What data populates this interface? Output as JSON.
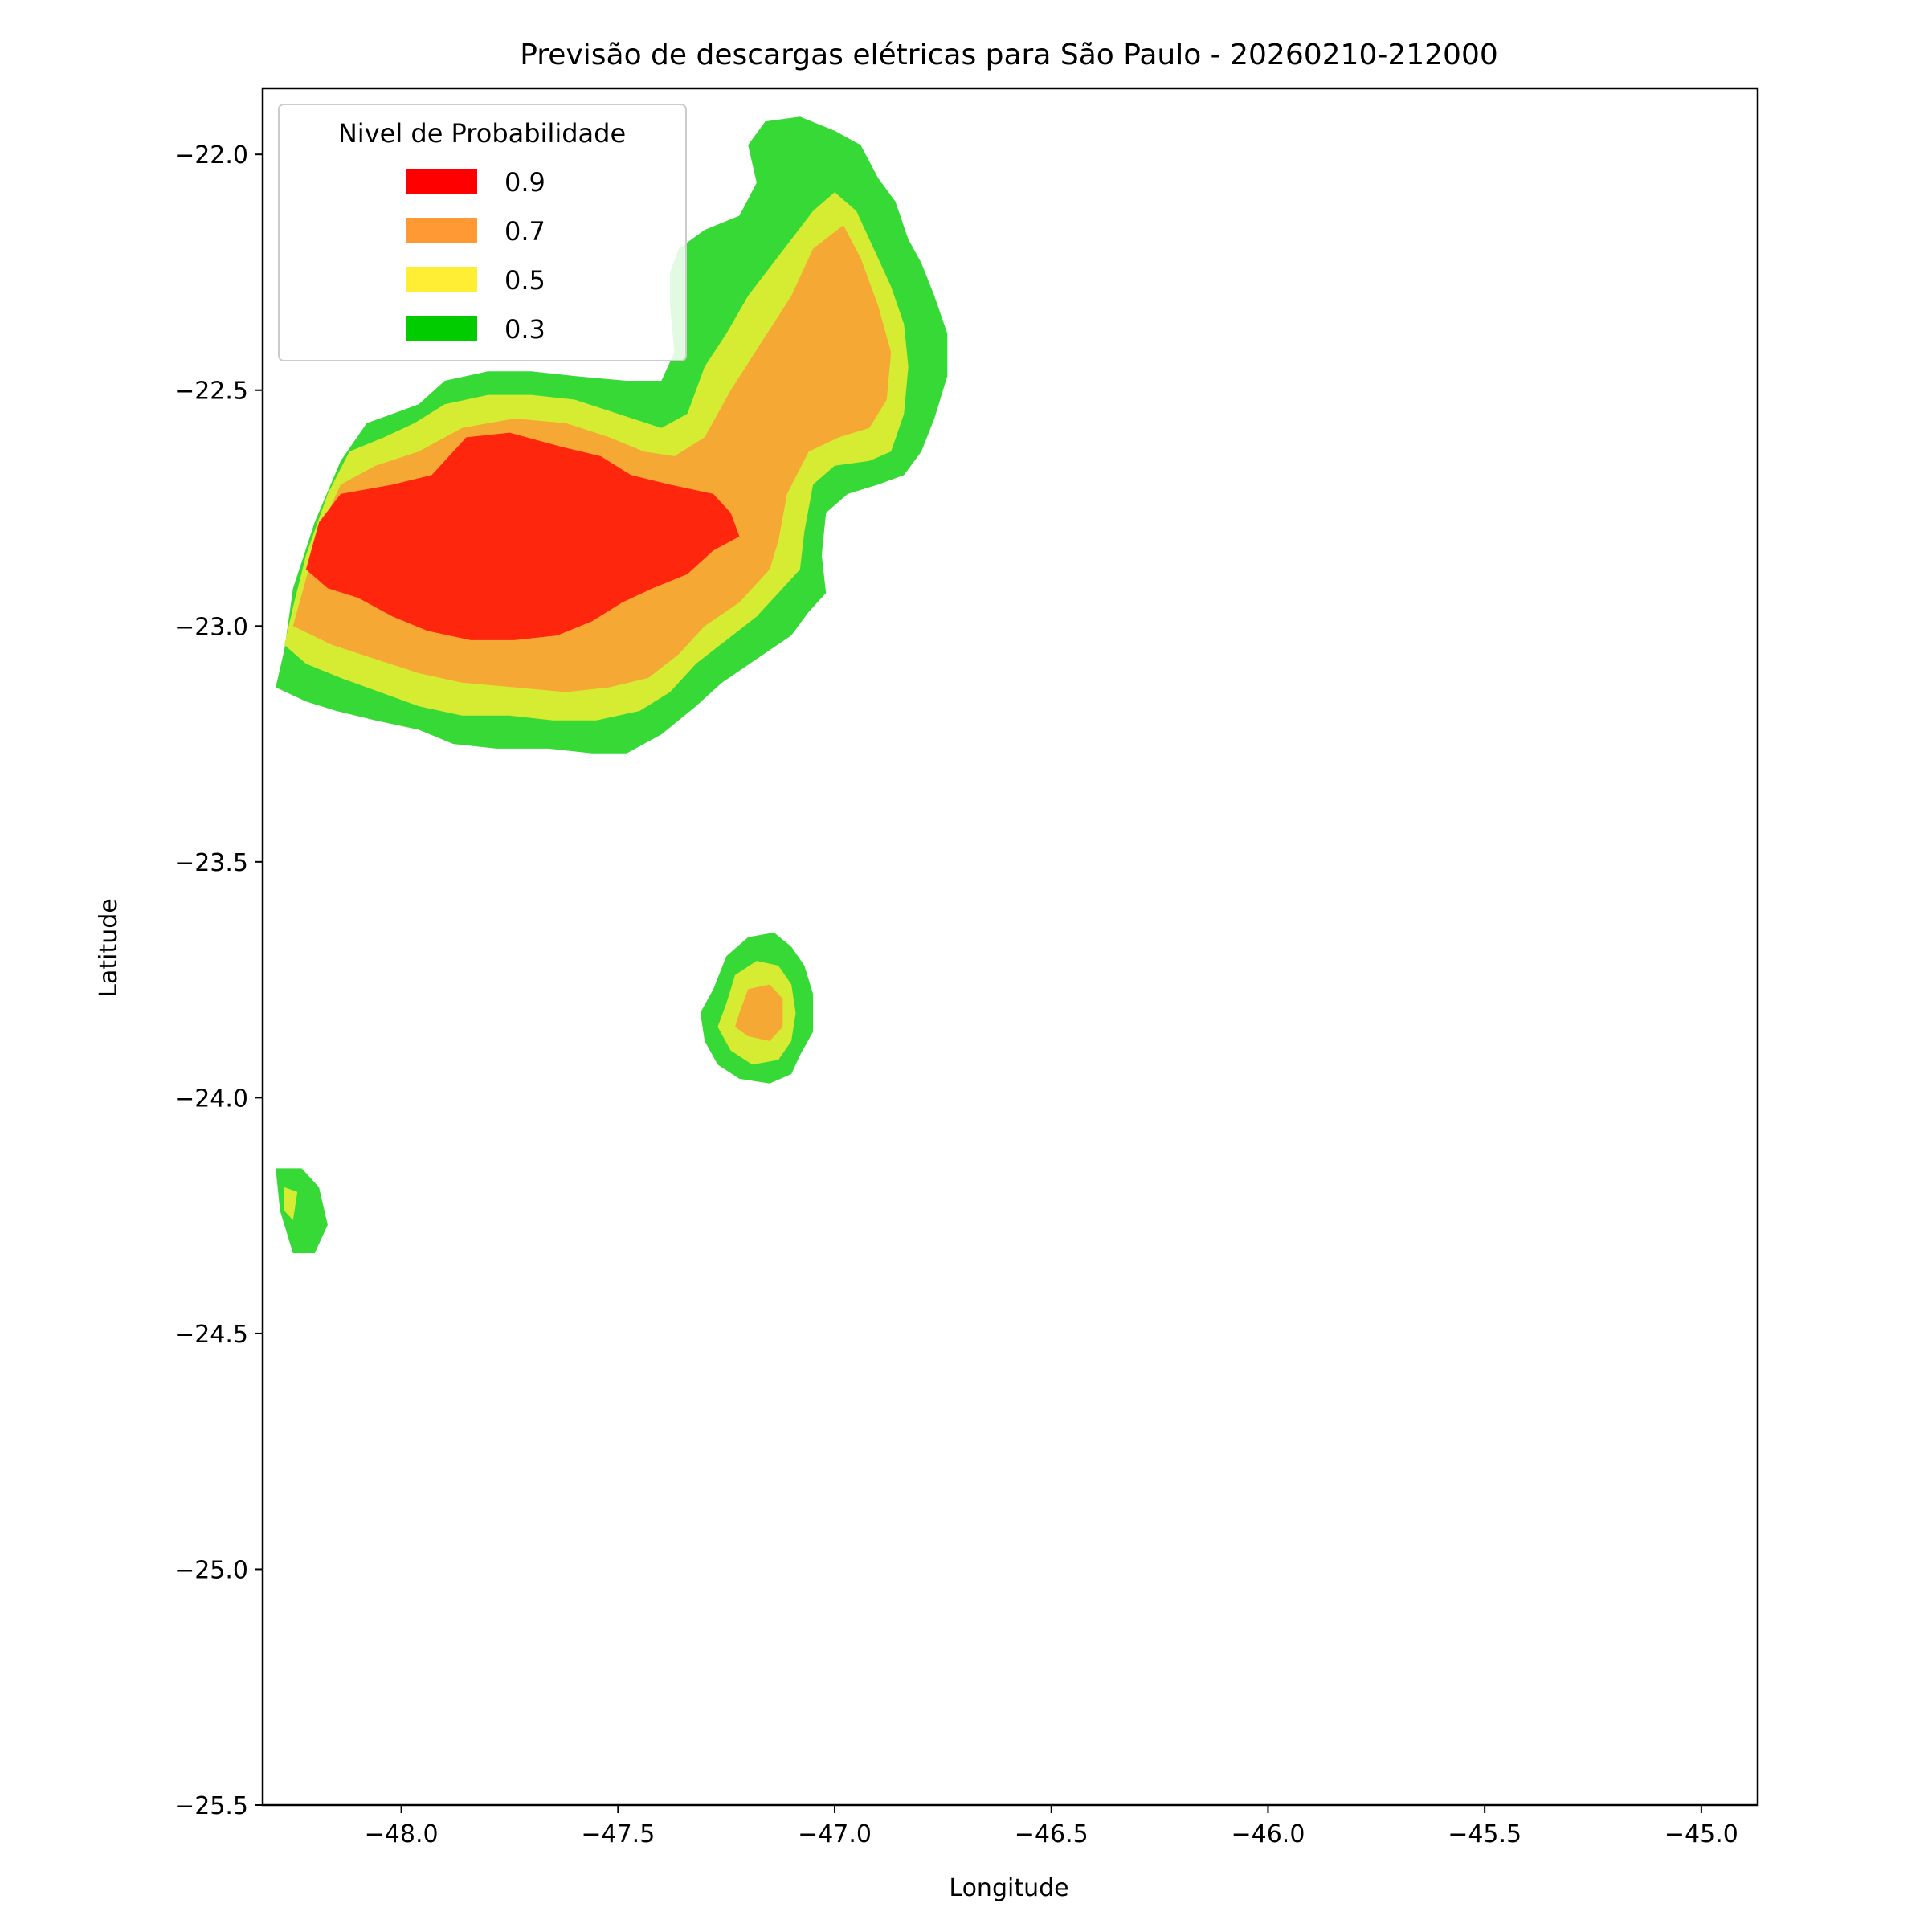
{
  "chart_data": {
    "type": "heatmap",
    "title": "Previsão de descargas elétricas para São Paulo - 20260210-212000",
    "xlabel": "Longitude",
    "ylabel": "Latitude",
    "xlim": [
      -48.32,
      -44.87
    ],
    "ylim": [
      -25.5,
      -21.86
    ],
    "xticks": [
      -48.0,
      -47.5,
      -47.0,
      -46.5,
      -46.0,
      -45.5,
      -45.0
    ],
    "yticks": [
      -22.0,
      -22.5,
      -23.0,
      -23.5,
      -24.0,
      -24.5,
      -25.0,
      -25.5
    ],
    "grid": false,
    "legend": {
      "title": "Nivel de Probabilidade",
      "placement": "upper-left",
      "entries": [
        {
          "label": "0.9",
          "color": "#ff0000"
        },
        {
          "label": "0.7",
          "color": "#ff9933"
        },
        {
          "label": "0.5",
          "color": "#ffee33"
        },
        {
          "label": "0.3",
          "color": "#00cc00"
        }
      ]
    },
    "regions": [
      {
        "level": "0.3",
        "color": "#37d937",
        "polygons": [
          [
            [
              -48.29,
              -23.13
            ],
            [
              -48.27,
              -23.05
            ],
            [
              -48.25,
              -22.92
            ],
            [
              -48.2,
              -22.78
            ],
            [
              -48.14,
              -22.65
            ],
            [
              -48.08,
              -22.57
            ],
            [
              -48.02,
              -22.55
            ],
            [
              -47.96,
              -22.53
            ],
            [
              -47.9,
              -22.48
            ],
            [
              -47.8,
              -22.46
            ],
            [
              -47.7,
              -22.46
            ],
            [
              -47.6,
              -22.47
            ],
            [
              -47.48,
              -22.48
            ],
            [
              -47.4,
              -22.48
            ],
            [
              -47.37,
              -22.42
            ],
            [
              -47.38,
              -22.32
            ],
            [
              -47.38,
              -22.25
            ],
            [
              -47.36,
              -22.2
            ],
            [
              -47.3,
              -22.16
            ],
            [
              -47.22,
              -22.13
            ],
            [
              -47.18,
              -22.06
            ],
            [
              -47.2,
              -21.98
            ],
            [
              -47.16,
              -21.93
            ],
            [
              -47.08,
              -21.92
            ],
            [
              -47.0,
              -21.95
            ],
            [
              -46.94,
              -21.98
            ],
            [
              -46.9,
              -22.05
            ],
            [
              -46.86,
              -22.1
            ],
            [
              -46.83,
              -22.18
            ],
            [
              -46.8,
              -22.23
            ],
            [
              -46.77,
              -22.3
            ],
            [
              -46.74,
              -22.38
            ],
            [
              -46.74,
              -22.47
            ],
            [
              -46.77,
              -22.56
            ],
            [
              -46.8,
              -22.63
            ],
            [
              -46.84,
              -22.68
            ],
            [
              -46.9,
              -22.7
            ],
            [
              -46.97,
              -22.72
            ],
            [
              -47.02,
              -22.76
            ],
            [
              -47.03,
              -22.85
            ],
            [
              -47.02,
              -22.93
            ],
            [
              -47.06,
              -22.97
            ],
            [
              -47.1,
              -23.02
            ],
            [
              -47.18,
              -23.07
            ],
            [
              -47.26,
              -23.12
            ],
            [
              -47.32,
              -23.17
            ],
            [
              -47.4,
              -23.23
            ],
            [
              -47.48,
              -23.27
            ],
            [
              -47.56,
              -23.27
            ],
            [
              -47.66,
              -23.26
            ],
            [
              -47.78,
              -23.26
            ],
            [
              -47.88,
              -23.25
            ],
            [
              -47.96,
              -23.22
            ],
            [
              -48.06,
              -23.2
            ],
            [
              -48.15,
              -23.18
            ],
            [
              -48.22,
              -23.16
            ],
            [
              -48.29,
              -23.13
            ]
          ],
          [
            [
              -47.28,
              -23.77
            ],
            [
              -47.25,
              -23.7
            ],
            [
              -47.2,
              -23.66
            ],
            [
              -47.14,
              -23.65
            ],
            [
              -47.1,
              -23.68
            ],
            [
              -47.07,
              -23.72
            ],
            [
              -47.05,
              -23.78
            ],
            [
              -47.05,
              -23.86
            ],
            [
              -47.08,
              -23.91
            ],
            [
              -47.1,
              -23.95
            ],
            [
              -47.15,
              -23.97
            ],
            [
              -47.22,
              -23.96
            ],
            [
              -47.27,
              -23.93
            ],
            [
              -47.3,
              -23.88
            ],
            [
              -47.31,
              -23.82
            ],
            [
              -47.28,
              -23.77
            ]
          ],
          [
            [
              -48.29,
              -24.15
            ],
            [
              -48.23,
              -24.15
            ],
            [
              -48.19,
              -24.19
            ],
            [
              -48.17,
              -24.27
            ],
            [
              -48.2,
              -24.33
            ],
            [
              -48.25,
              -24.33
            ],
            [
              -48.28,
              -24.24
            ],
            [
              -48.29,
              -24.15
            ]
          ]
        ]
      },
      {
        "level": "0.5",
        "color": "#d6ec33",
        "polygons": [
          [
            [
              -48.27,
              -23.04
            ],
            [
              -48.25,
              -22.96
            ],
            [
              -48.22,
              -22.85
            ],
            [
              -48.17,
              -22.72
            ],
            [
              -48.12,
              -22.63
            ],
            [
              -48.04,
              -22.6
            ],
            [
              -47.97,
              -22.57
            ],
            [
              -47.9,
              -22.53
            ],
            [
              -47.8,
              -22.51
            ],
            [
              -47.7,
              -22.51
            ],
            [
              -47.6,
              -22.52
            ],
            [
              -47.5,
              -22.55
            ],
            [
              -47.4,
              -22.58
            ],
            [
              -47.34,
              -22.55
            ],
            [
              -47.3,
              -22.45
            ],
            [
              -47.25,
              -22.38
            ],
            [
              -47.2,
              -22.3
            ],
            [
              -47.15,
              -22.24
            ],
            [
              -47.1,
              -22.18
            ],
            [
              -47.05,
              -22.12
            ],
            [
              -47.0,
              -22.08
            ],
            [
              -46.95,
              -22.12
            ],
            [
              -46.91,
              -22.2
            ],
            [
              -46.87,
              -22.28
            ],
            [
              -46.84,
              -22.36
            ],
            [
              -46.83,
              -22.45
            ],
            [
              -46.84,
              -22.55
            ],
            [
              -46.87,
              -22.63
            ],
            [
              -46.92,
              -22.65
            ],
            [
              -47.0,
              -22.66
            ],
            [
              -47.05,
              -22.7
            ],
            [
              -47.07,
              -22.8
            ],
            [
              -47.08,
              -22.88
            ],
            [
              -47.13,
              -22.93
            ],
            [
              -47.18,
              -22.98
            ],
            [
              -47.25,
              -23.03
            ],
            [
              -47.32,
              -23.08
            ],
            [
              -47.38,
              -23.14
            ],
            [
              -47.45,
              -23.18
            ],
            [
              -47.55,
              -23.2
            ],
            [
              -47.65,
              -23.2
            ],
            [
              -47.75,
              -23.19
            ],
            [
              -47.86,
              -23.19
            ],
            [
              -47.96,
              -23.17
            ],
            [
              -48.05,
              -23.14
            ],
            [
              -48.14,
              -23.11
            ],
            [
              -48.22,
              -23.08
            ],
            [
              -48.27,
              -23.04
            ]
          ],
          [
            [
              -47.25,
              -23.8
            ],
            [
              -47.23,
              -23.74
            ],
            [
              -47.18,
              -23.71
            ],
            [
              -47.13,
              -23.72
            ],
            [
              -47.1,
              -23.76
            ],
            [
              -47.09,
              -23.82
            ],
            [
              -47.1,
              -23.88
            ],
            [
              -47.13,
              -23.92
            ],
            [
              -47.19,
              -23.93
            ],
            [
              -47.24,
              -23.9
            ],
            [
              -47.27,
              -23.85
            ],
            [
              -47.25,
              -23.8
            ]
          ],
          [
            [
              -48.27,
              -24.19
            ],
            [
              -48.24,
              -24.2
            ],
            [
              -48.25,
              -24.26
            ],
            [
              -48.27,
              -24.24
            ],
            [
              -48.27,
              -24.19
            ]
          ]
        ]
      },
      {
        "level": "0.7",
        "color": "#f6a834",
        "polygons": [
          [
            [
              -48.25,
              -23.0
            ],
            [
              -48.22,
              -22.9
            ],
            [
              -48.19,
              -22.8
            ],
            [
              -48.14,
              -22.7
            ],
            [
              -48.06,
              -22.66
            ],
            [
              -47.96,
              -22.63
            ],
            [
              -47.86,
              -22.58
            ],
            [
              -47.74,
              -22.56
            ],
            [
              -47.62,
              -22.57
            ],
            [
              -47.52,
              -22.6
            ],
            [
              -47.44,
              -22.63
            ],
            [
              -47.37,
              -22.64
            ],
            [
              -47.3,
              -22.6
            ],
            [
              -47.24,
              -22.5
            ],
            [
              -47.17,
              -22.4
            ],
            [
              -47.1,
              -22.3
            ],
            [
              -47.05,
              -22.2
            ],
            [
              -46.98,
              -22.15
            ],
            [
              -46.94,
              -22.22
            ],
            [
              -46.9,
              -22.32
            ],
            [
              -46.87,
              -22.42
            ],
            [
              -46.88,
              -22.52
            ],
            [
              -46.92,
              -22.58
            ],
            [
              -46.99,
              -22.6
            ],
            [
              -47.06,
              -22.63
            ],
            [
              -47.11,
              -22.72
            ],
            [
              -47.13,
              -22.82
            ],
            [
              -47.15,
              -22.88
            ],
            [
              -47.22,
              -22.95
            ],
            [
              -47.3,
              -23.0
            ],
            [
              -47.36,
              -23.06
            ],
            [
              -47.43,
              -23.11
            ],
            [
              -47.52,
              -23.13
            ],
            [
              -47.62,
              -23.14
            ],
            [
              -47.74,
              -23.13
            ],
            [
              -47.86,
              -23.12
            ],
            [
              -47.96,
              -23.1
            ],
            [
              -48.06,
              -23.07
            ],
            [
              -48.16,
              -23.04
            ],
            [
              -48.25,
              -23.0
            ]
          ],
          [
            [
              -47.22,
              -23.82
            ],
            [
              -47.2,
              -23.77
            ],
            [
              -47.15,
              -23.76
            ],
            [
              -47.12,
              -23.79
            ],
            [
              -47.12,
              -23.85
            ],
            [
              -47.15,
              -23.88
            ],
            [
              -47.2,
              -23.87
            ],
            [
              -47.23,
              -23.85
            ],
            [
              -47.22,
              -23.82
            ]
          ]
        ]
      },
      {
        "level": "0.9",
        "color": "#ff260e",
        "polygons": [
          [
            [
              -48.22,
              -22.88
            ],
            [
              -48.19,
              -22.78
            ],
            [
              -48.14,
              -22.72
            ],
            [
              -48.02,
              -22.7
            ],
            [
              -47.93,
              -22.68
            ],
            [
              -47.85,
              -22.6
            ],
            [
              -47.75,
              -22.59
            ],
            [
              -47.63,
              -22.62
            ],
            [
              -47.54,
              -22.64
            ],
            [
              -47.47,
              -22.68
            ],
            [
              -47.38,
              -22.7
            ],
            [
              -47.28,
              -22.72
            ],
            [
              -47.24,
              -22.76
            ],
            [
              -47.22,
              -22.81
            ],
            [
              -47.28,
              -22.84
            ],
            [
              -47.34,
              -22.89
            ],
            [
              -47.42,
              -22.92
            ],
            [
              -47.49,
              -22.95
            ],
            [
              -47.56,
              -22.99
            ],
            [
              -47.64,
              -23.02
            ],
            [
              -47.74,
              -23.03
            ],
            [
              -47.84,
              -23.03
            ],
            [
              -47.94,
              -23.01
            ],
            [
              -48.02,
              -22.98
            ],
            [
              -48.1,
              -22.94
            ],
            [
              -48.17,
              -22.92
            ],
            [
              -48.22,
              -22.88
            ]
          ]
        ]
      }
    ]
  }
}
